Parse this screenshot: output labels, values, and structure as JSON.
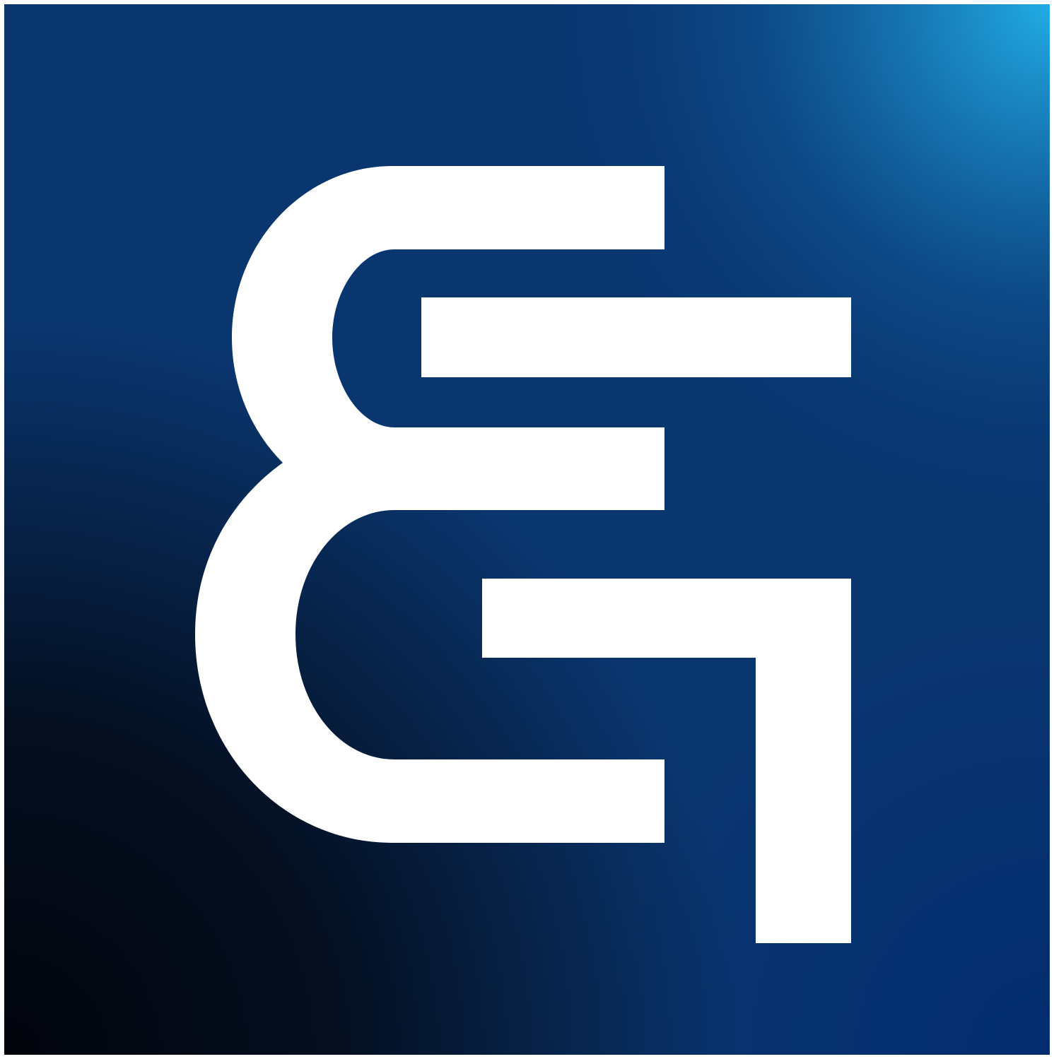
{
  "logo": {
    "name": "stylized-e-and-7-monogram",
    "glyph_color": "#ffffff",
    "border_color": "#ffffff",
    "background": {
      "style": "radial-gradient",
      "highlight_corner": "top-right",
      "highlight_color": "#21ABE4",
      "mid_color": "#0D4F8E",
      "base_color": "#0A3670",
      "dark_corner": "bottom-left",
      "dark_color": "#02040B",
      "accent_corner": "bottom-right",
      "accent_color": "#012B6E"
    }
  }
}
